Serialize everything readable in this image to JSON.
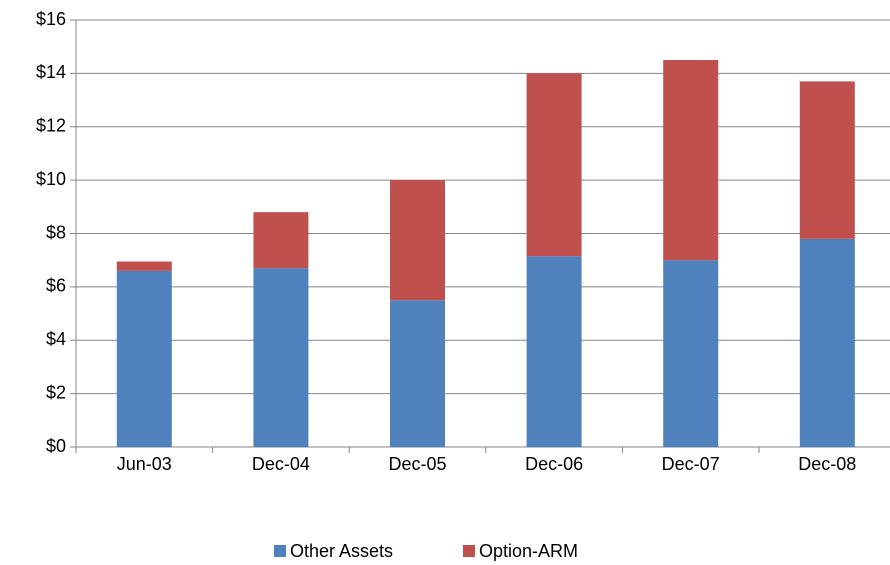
{
  "chart_data": {
    "type": "stacked_bar",
    "categories": [
      "Jun-03",
      "Dec-04",
      "Dec-05",
      "Dec-06",
      "Dec-07",
      "Dec-08"
    ],
    "series": [
      {
        "name": "Other Assets",
        "color": "#4f81bd",
        "values": [
          6.6,
          6.7,
          5.5,
          7.15,
          7.0,
          7.8
        ]
      },
      {
        "name": "Option-ARM",
        "color": "#c0504d",
        "values": [
          0.35,
          2.1,
          4.5,
          6.85,
          7.5,
          5.9
        ]
      }
    ],
    "ylim": [
      0,
      16
    ],
    "yticks": [
      {
        "value": 0,
        "label": "$0"
      },
      {
        "value": 2,
        "label": "$2"
      },
      {
        "value": 4,
        "label": "$4"
      },
      {
        "value": 6,
        "label": "$6"
      },
      {
        "value": 8,
        "label": "$8"
      },
      {
        "value": 10,
        "label": "$10"
      },
      {
        "value": 12,
        "label": "$12"
      },
      {
        "value": 14,
        "label": "$14"
      },
      {
        "value": 16,
        "label": "$16"
      }
    ],
    "grid": true,
    "legend": "bottom"
  }
}
